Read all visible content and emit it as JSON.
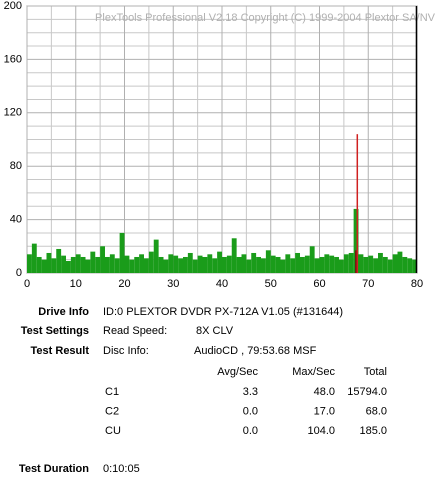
{
  "chart_data": {
    "type": "bar",
    "watermark": "PlexTools Professional V2.18 Copyright (C) 1999-2004 Plextor SA/NV",
    "xlim": [
      0,
      80
    ],
    "ylim": [
      0,
      200
    ],
    "xticks": [
      0,
      10,
      20,
      30,
      40,
      50,
      60,
      70,
      80
    ],
    "yticks": [
      0,
      40,
      80,
      120,
      160,
      200
    ],
    "x_minor_ticks": [
      5,
      15,
      25,
      35,
      45,
      55,
      65,
      75
    ],
    "y_minor_ticks": [
      10,
      20,
      30,
      50,
      60,
      70,
      90,
      100,
      110,
      130,
      140,
      150,
      170,
      180,
      190
    ],
    "grid": true,
    "end_marker_x": 79.89,
    "series": [
      {
        "name": "C1",
        "color": "#1a9c1a",
        "x": [
          0,
          1,
          2,
          3,
          4,
          5,
          6,
          7,
          8,
          9,
          10,
          11,
          12,
          13,
          14,
          15,
          16,
          17,
          18,
          19,
          20,
          21,
          22,
          23,
          24,
          25,
          26,
          27,
          28,
          29,
          30,
          31,
          32,
          33,
          34,
          35,
          36,
          37,
          38,
          39,
          40,
          41,
          42,
          43,
          44,
          45,
          46,
          47,
          48,
          49,
          50,
          51,
          52,
          53,
          54,
          55,
          56,
          57,
          58,
          59,
          60,
          61,
          62,
          63,
          64,
          65,
          66,
          67,
          68,
          69,
          70,
          71,
          72,
          73,
          74,
          75,
          76,
          77,
          78,
          79
        ],
        "values": [
          14,
          22,
          12,
          10,
          15,
          11,
          18,
          13,
          9,
          12,
          14,
          12,
          10,
          16,
          12,
          20,
          12,
          14,
          11,
          30,
          13,
          10,
          12,
          14,
          11,
          16,
          25,
          12,
          10,
          14,
          13,
          11,
          12,
          15,
          10,
          13,
          12,
          14,
          11,
          16,
          12,
          13,
          26,
          12,
          14,
          10,
          15,
          12,
          11,
          17,
          13,
          12,
          10,
          14,
          11,
          15,
          12,
          13,
          20,
          11,
          12,
          14,
          13,
          12,
          10,
          14,
          15,
          48,
          14,
          12,
          13,
          11,
          15,
          12,
          10,
          14,
          16,
          12,
          11,
          10
        ]
      },
      {
        "name": "C2",
        "color": "#7a1010",
        "x": [
          67.3
        ],
        "values": [
          17
        ]
      },
      {
        "name": "CU",
        "color": "#d02020",
        "x": [
          67.6
        ],
        "values": [
          104
        ]
      }
    ]
  },
  "info": {
    "rows": [
      {
        "label": "Drive Info",
        "value": "ID:0 PLEXTOR DVDR PX-712A V1.05 (#131644)"
      },
      {
        "label": "Test Settings",
        "key": "Read Speed:",
        "value": "8X CLV"
      },
      {
        "label": "Test Result",
        "key": "Disc Info:",
        "value": "AudioCD , 79:53.68 MSF"
      }
    ],
    "table": {
      "header": [
        "Avg/Sec",
        "Max/Sec",
        "Total"
      ],
      "rows": [
        [
          "C1",
          "3.3",
          "48.0",
          "15794.0"
        ],
        [
          "C2",
          "0.0",
          "17.0",
          "68.0"
        ],
        [
          "CU",
          "0.0",
          "104.0",
          "185.0"
        ]
      ]
    },
    "duration": {
      "label": "Test Duration",
      "value": "0:10:05"
    }
  }
}
